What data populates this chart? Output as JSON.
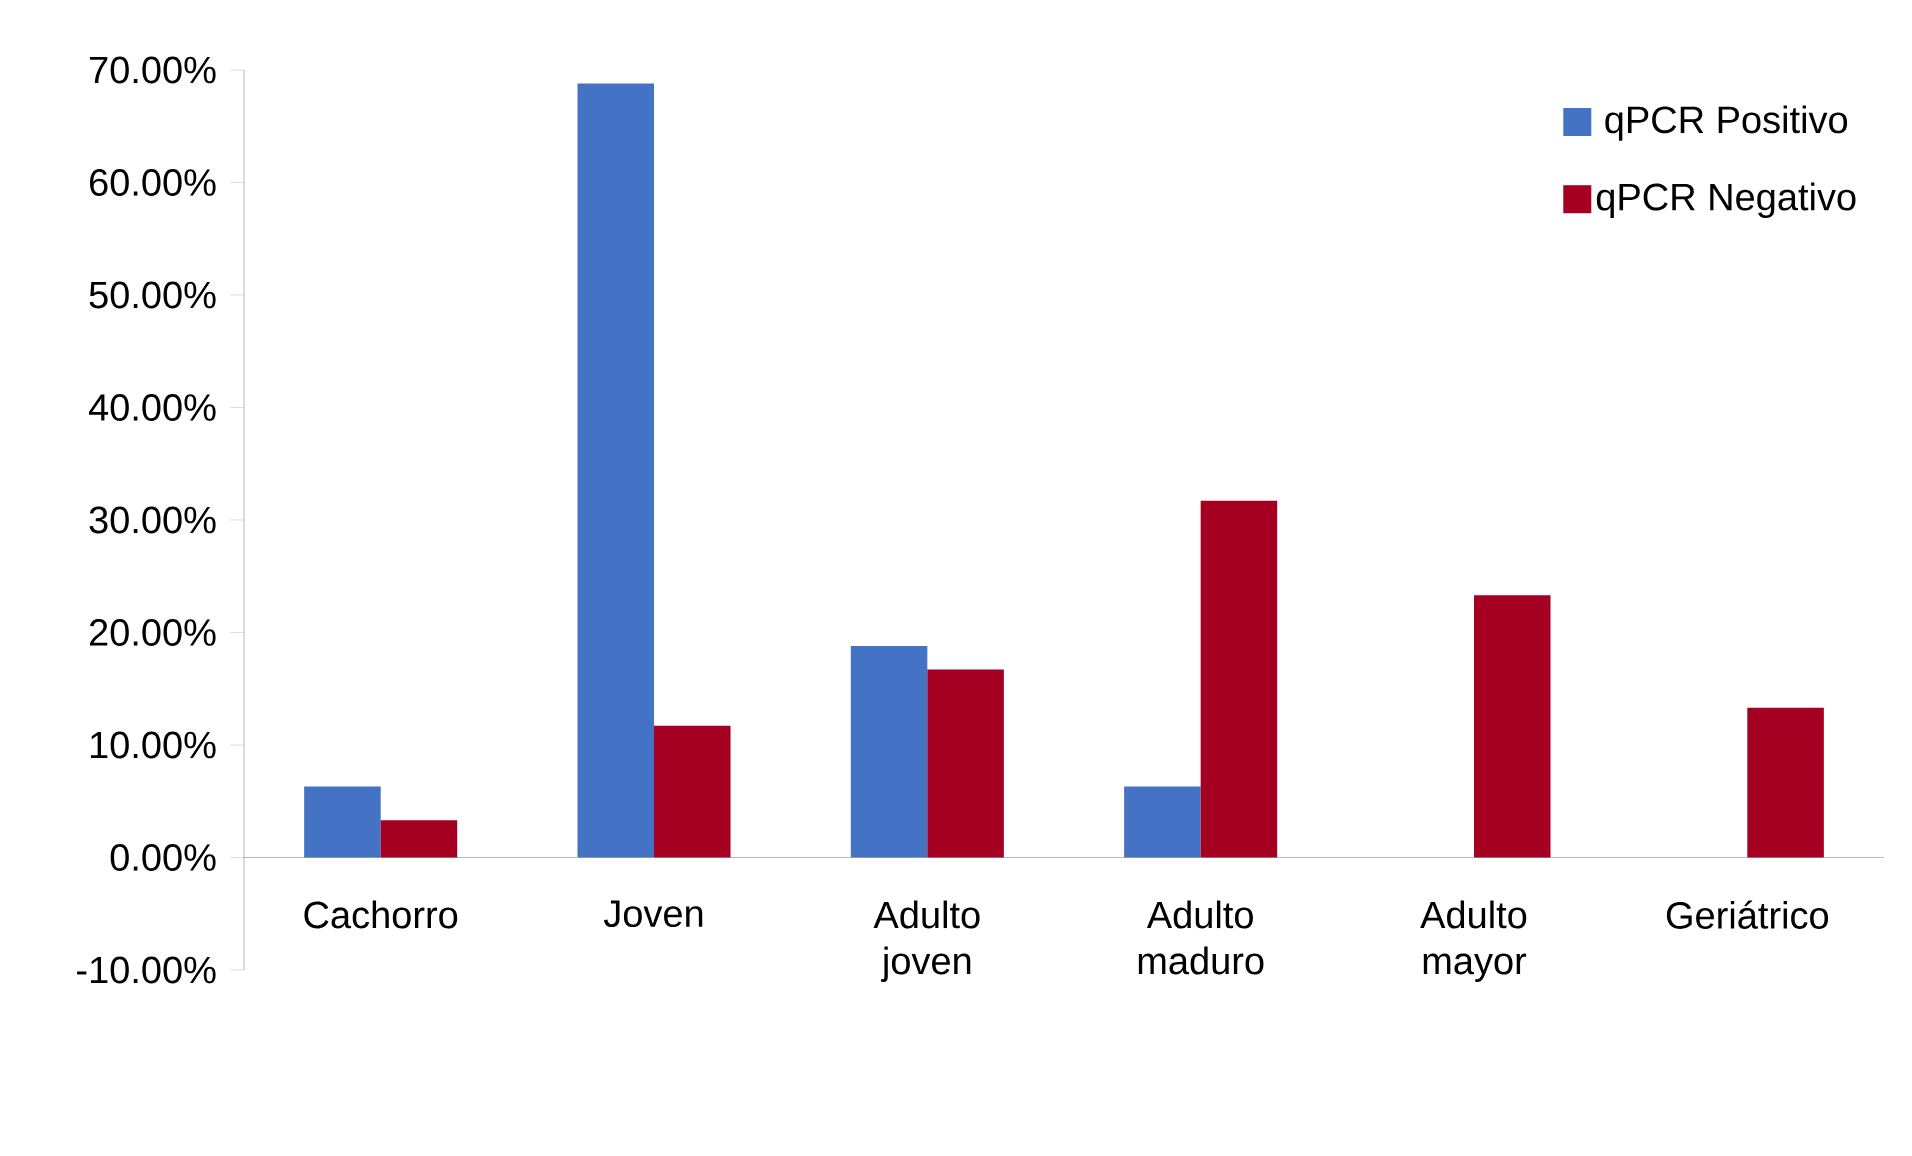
{
  "chart_data": {
    "type": "bar",
    "categories": [
      "Cachorro",
      "Joven",
      "Adulto joven",
      "Adulto maduro",
      "Adulto mayor",
      "Geriátrico"
    ],
    "series": [
      {
        "name": "qPCR Positivo",
        "color": "#4472c4",
        "values": [
          6.3,
          68.8,
          18.8,
          6.3,
          0,
          0
        ]
      },
      {
        "name": "qPCR Negativo",
        "color": "#a50021",
        "values": [
          3.3,
          11.7,
          16.7,
          31.7,
          23.3,
          13.3
        ]
      }
    ],
    "ylim": [
      -10,
      70
    ],
    "yticks": [
      {
        "value": -10,
        "label": "-10.00%"
      },
      {
        "value": 0,
        "label": "0.00%"
      },
      {
        "value": 10,
        "label": "10.00%"
      },
      {
        "value": 20,
        "label": "20.00%"
      },
      {
        "value": 30,
        "label": "30.00%"
      },
      {
        "value": 40,
        "label": "40.00%"
      },
      {
        "value": 50,
        "label": "50.00%"
      },
      {
        "value": 60,
        "label": "60.00%"
      },
      {
        "value": 70,
        "label": "70.00%"
      }
    ],
    "legend": "top right"
  }
}
